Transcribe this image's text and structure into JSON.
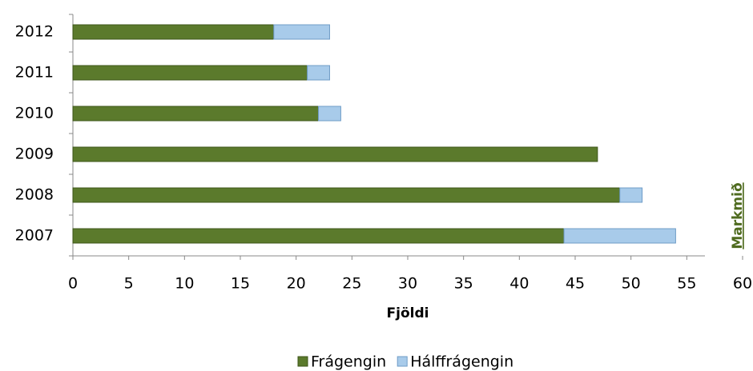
{
  "chart_data": {
    "type": "bar",
    "orientation": "horizontal",
    "stacked": true,
    "categories": [
      "2007",
      "2008",
      "2009",
      "2010",
      "2011",
      "2012"
    ],
    "series": [
      {
        "name": "Frágengin",
        "color": "#5b7a2c",
        "values": [
          44,
          49,
          47,
          22,
          21,
          18
        ]
      },
      {
        "name": "Hálffrágengin",
        "color": "#a8cbea",
        "values": [
          10,
          2,
          0,
          2,
          2,
          5
        ]
      }
    ],
    "xlim": [
      0,
      60
    ],
    "xticks": [
      0,
      5,
      10,
      15,
      20,
      25,
      30,
      35,
      40,
      45,
      50,
      55,
      60
    ],
    "xlabel": "Fjöldi",
    "annotation": "Markmið",
    "legend": "bottom"
  }
}
